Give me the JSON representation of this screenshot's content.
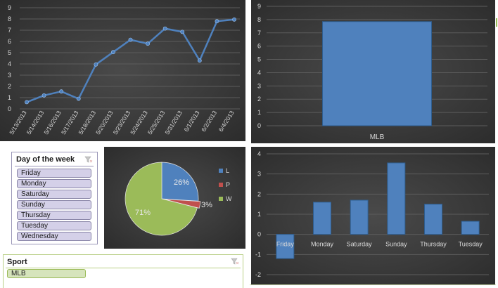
{
  "line_chart": {
    "chart_data": {
      "type": "line",
      "x": [
        "5/13/2013",
        "5/14/2013",
        "5/16/2013",
        "5/17/2013",
        "5/18/2013",
        "5/20/2013",
        "5/23/2013",
        "5/24/2013",
        "5/25/2013",
        "5/31/2013",
        "6/1/2013",
        "6/2/2013",
        "6/4/2013"
      ],
      "values": [
        0.6,
        1.2,
        1.55,
        0.9,
        3.95,
        5.05,
        6.15,
        5.8,
        7.15,
        6.85,
        4.3,
        7.8,
        7.95
      ],
      "ylim": [
        0,
        9
      ],
      "yticks": [
        "0",
        "1",
        "2",
        "3",
        "4",
        "5",
        "6",
        "7",
        "8",
        "9"
      ],
      "grid": true,
      "color": "#4f81bd"
    }
  },
  "bar_chart_sport": {
    "chart_data": {
      "type": "bar",
      "categories": [
        "MLB"
      ],
      "values": [
        7.85
      ],
      "ylim": [
        0,
        9
      ],
      "yticks": [
        "0",
        "1",
        "2",
        "3",
        "4",
        "5",
        "6",
        "7",
        "8",
        "9"
      ],
      "grid": true,
      "color": "#4f81bd"
    }
  },
  "pie_chart": {
    "chart_data": {
      "type": "pie",
      "slices": [
        {
          "label": "L",
          "value": 26,
          "text": "26%",
          "color": "#4f81bd"
        },
        {
          "label": "P",
          "value": 3,
          "text": "3%",
          "color": "#c0504d"
        },
        {
          "label": "W",
          "value": 71,
          "text": "71%",
          "color": "#9bbb59"
        }
      ],
      "legend": "right"
    }
  },
  "bar_chart_day": {
    "chart_data": {
      "type": "bar",
      "categories": [
        "Friday",
        "Monday",
        "Saturday",
        "Sunday",
        "Thursday",
        "Tuesday"
      ],
      "values": [
        -1.2,
        1.6,
        1.7,
        3.55,
        1.5,
        0.65
      ],
      "ylim": [
        -2,
        4
      ],
      "yticks": [
        "-2",
        "-1",
        "0",
        "1",
        "2",
        "3",
        "4"
      ],
      "grid": true,
      "color": "#4f81bd"
    }
  },
  "day_slicer": {
    "title": "Day of the week",
    "items": [
      "Friday",
      "Monday",
      "Saturday",
      "Sunday",
      "Thursday",
      "Tuesday",
      "Wednesday"
    ],
    "item_color": "#d4d0e8",
    "border_color": "#8a86a8"
  },
  "sport_slicer": {
    "title": "Sport",
    "items": [
      "MLB"
    ],
    "item_color": "#d6e4bc",
    "border_color": "#9bbb59"
  }
}
